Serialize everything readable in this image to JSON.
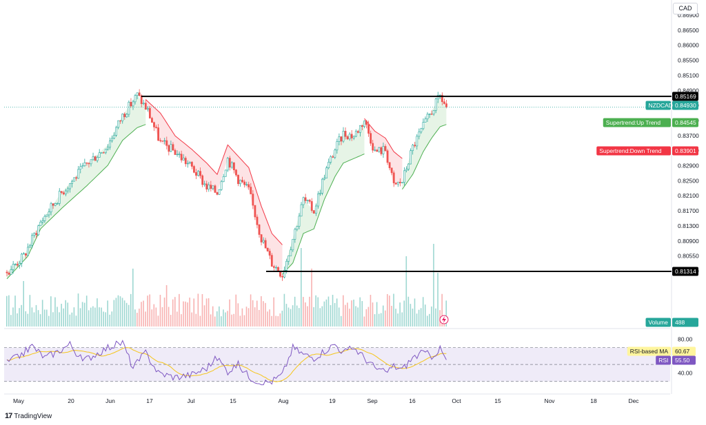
{
  "currency_label": "CAD",
  "brand": {
    "name": "TradingView",
    "logo_glyph": "17"
  },
  "colors": {
    "up": "#26a69a",
    "down": "#ef5350",
    "st_up": "#4caf50",
    "st_down": "#f23645",
    "rsi": "#7e57c2",
    "rsi_ma": "#f5c518",
    "level": "#000000",
    "symbol_tag": "#26a69a"
  },
  "chart_data": [
    {
      "type": "candlestick",
      "symbol": "NZDCAD",
      "x_tick_labels": [
        "May",
        "20",
        "Jun",
        "17",
        "Jul",
        "15",
        "Aug",
        "19",
        "Sep",
        "16",
        "Oct",
        "15",
        "Nov",
        "18",
        "Dec"
      ],
      "y_tick_labels": [
        "0.86900",
        "0.86500",
        "0.86000",
        "0.85500",
        "0.85100",
        "0.84900",
        "0.84500",
        "0.84100",
        "0.83700",
        "0.83300",
        "0.82900",
        "0.82500",
        "0.82100",
        "0.81700",
        "0.81300",
        "0.80900",
        "0.80550",
        "0.80200"
      ],
      "ylim": [
        0.801,
        0.872
      ],
      "horizontal_levels": [
        0.85169,
        0.81314
      ],
      "price_tags": [
        {
          "label": "",
          "value": "0.85169",
          "style": "level"
        },
        {
          "label": "NZDCAD",
          "value": "0.84930",
          "style": "symbol"
        },
        {
          "label": "Supertrend:Up Trend",
          "value": "0.84545",
          "style": "st_up"
        },
        {
          "label": "Supertrend:Down Trend",
          "value": "0.83901",
          "style": "st_down"
        },
        {
          "label": "",
          "value": "0.81314",
          "style": "level"
        },
        {
          "label": "Volume",
          "value": "488",
          "style": "symbol"
        }
      ],
      "price_path": [
        [
          0,
          0.813
        ],
        [
          8,
          0.8165
        ],
        [
          16,
          0.824
        ],
        [
          26,
          0.8305
        ],
        [
          38,
          0.8368
        ],
        [
          48,
          0.841
        ],
        [
          55,
          0.8475
        ],
        [
          62,
          0.852
        ],
        [
          67,
          0.8485
        ],
        [
          73,
          0.8415
        ],
        [
          80,
          0.8395
        ],
        [
          88,
          0.836
        ],
        [
          95,
          0.8318
        ],
        [
          100,
          0.8305
        ],
        [
          105,
          0.838
        ],
        [
          110,
          0.8335
        ],
        [
          115,
          0.831
        ],
        [
          121,
          0.8205
        ],
        [
          126,
          0.815
        ],
        [
          131,
          0.8125
        ],
        [
          136,
          0.8205
        ],
        [
          141,
          0.829
        ],
        [
          146,
          0.8265
        ],
        [
          151,
          0.8345
        ],
        [
          156,
          0.84
        ],
        [
          160,
          0.8435
        ],
        [
          165,
          0.843
        ],
        [
          170,
          0.8465
        ],
        [
          175,
          0.8395
        ],
        [
          180,
          0.84
        ],
        [
          184,
          0.832
        ],
        [
          188,
          0.833
        ],
        [
          193,
          0.8405
        ],
        [
          198,
          0.845
        ],
        [
          202,
          0.8485
        ],
        [
          206,
          0.8517
        ],
        [
          209,
          0.8493
        ]
      ],
      "supertrend": [
        {
          "trend": "up",
          "points": [
            [
              0,
              0.8115
            ],
            [
              10,
              0.8165
            ],
            [
              16,
              0.8225
            ],
            [
              26,
              0.827
            ],
            [
              38,
              0.832
            ],
            [
              48,
              0.8365
            ],
            [
              55,
              0.842
            ],
            [
              62,
              0.8448
            ],
            [
              66,
              0.8455
            ]
          ]
        },
        {
          "trend": "down",
          "points": [
            [
              66,
              0.851
            ],
            [
              73,
              0.848
            ],
            [
              80,
              0.843
            ],
            [
              88,
              0.84
            ],
            [
              95,
              0.837
            ],
            [
              100,
              0.8345
            ],
            [
              105,
              0.841
            ],
            [
              110,
              0.8385
            ],
            [
              115,
              0.836
            ],
            [
              121,
              0.8275
            ],
            [
              126,
              0.8215
            ],
            [
              131,
              0.819
            ]
          ]
        },
        {
          "trend": "up",
          "points": [
            [
              131,
              0.8125
            ],
            [
              136,
              0.815
            ],
            [
              141,
              0.8215
            ],
            [
              146,
              0.8225
            ],
            [
              151,
              0.829
            ],
            [
              156,
              0.834
            ],
            [
              160,
              0.837
            ],
            [
              170,
              0.839
            ]
          ]
        },
        {
          "trend": "down",
          "points": [
            [
              170,
              0.8468
            ],
            [
              175,
              0.844
            ],
            [
              180,
              0.8425
            ],
            [
              184,
              0.8395
            ],
            [
              188,
              0.838
            ]
          ]
        },
        {
          "trend": "up",
          "points": [
            [
              188,
              0.8312
            ],
            [
              193,
              0.8345
            ],
            [
              198,
              0.8395
            ],
            [
              202,
              0.8425
            ],
            [
              206,
              0.845
            ],
            [
              209,
              0.8455
            ]
          ]
        }
      ],
      "volume_label": "Volume",
      "volume_last": 488,
      "volume_spikes": [
        [
          8,
          0.55
        ],
        [
          60,
          0.7
        ],
        [
          76,
          0.5
        ],
        [
          140,
          0.95
        ],
        [
          145,
          0.7
        ],
        [
          190,
          0.85
        ],
        [
          203,
          1.0
        ],
        [
          205,
          0.65
        ]
      ]
    },
    {
      "type": "line",
      "title": "",
      "y_tick_labels": [
        "80.00",
        "40.00"
      ],
      "ylim": [
        20,
        90
      ],
      "bands": [
        70,
        50,
        30
      ],
      "series": [
        {
          "name": "RSI-based MA",
          "value": "60.67"
        },
        {
          "name": "RSI",
          "value": "55.50"
        }
      ],
      "rsi_path": [
        [
          0,
          52
        ],
        [
          6,
          60
        ],
        [
          12,
          72
        ],
        [
          18,
          58
        ],
        [
          24,
          65
        ],
        [
          30,
          74
        ],
        [
          36,
          54
        ],
        [
          42,
          62
        ],
        [
          48,
          70
        ],
        [
          55,
          76
        ],
        [
          60,
          46
        ],
        [
          66,
          64
        ],
        [
          72,
          40
        ],
        [
          80,
          35
        ],
        [
          88,
          38
        ],
        [
          95,
          46
        ],
        [
          100,
          58
        ],
        [
          105,
          42
        ],
        [
          110,
          50
        ],
        [
          115,
          36
        ],
        [
          121,
          28
        ],
        [
          126,
          30
        ],
        [
          131,
          38
        ],
        [
          136,
          70
        ],
        [
          141,
          62
        ],
        [
          146,
          58
        ],
        [
          151,
          66
        ],
        [
          156,
          74
        ],
        [
          160,
          64
        ],
        [
          165,
          70
        ],
        [
          170,
          58
        ],
        [
          175,
          46
        ],
        [
          180,
          40
        ],
        [
          184,
          48
        ],
        [
          188,
          44
        ],
        [
          193,
          58
        ],
        [
          198,
          64
        ],
        [
          202,
          60
        ],
        [
          206,
          68
        ],
        [
          209,
          55.5
        ]
      ]
    }
  ]
}
